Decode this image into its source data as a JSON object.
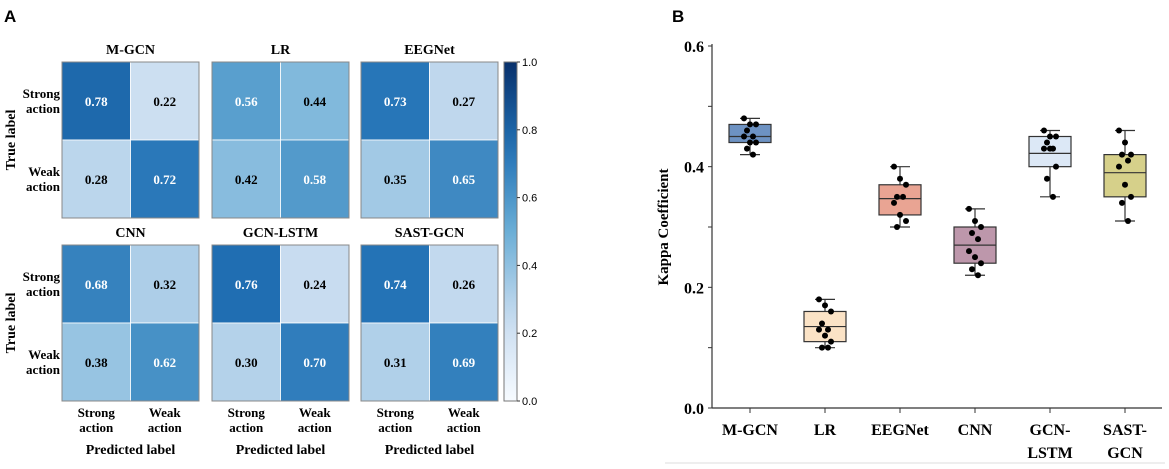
{
  "chart_data": [
    {
      "type": "heatmap",
      "panel_label": "A",
      "ylabel": "True label",
      "xlabel": "Predicted label",
      "row_labels": [
        [
          "Strong",
          "action"
        ],
        [
          "Weak",
          "action"
        ]
      ],
      "col_labels": [
        [
          "Strong",
          "action"
        ],
        [
          "Weak",
          "action"
        ]
      ],
      "colorbar": {
        "min": 0.0,
        "max": 1.0,
        "ticks": [
          "0.0",
          "0.2",
          "0.4",
          "0.6",
          "0.8",
          "1.0"
        ],
        "colormap": "Blues"
      },
      "matrices": [
        {
          "title": "M-GCN",
          "values": [
            [
              0.78,
              0.22
            ],
            [
              0.28,
              0.72
            ]
          ]
        },
        {
          "title": "LR",
          "values": [
            [
              0.56,
              0.44
            ],
            [
              0.42,
              0.58
            ]
          ]
        },
        {
          "title": "EEGNet",
          "values": [
            [
              0.73,
              0.27
            ],
            [
              0.35,
              0.65
            ]
          ]
        },
        {
          "title": "CNN",
          "values": [
            [
              0.68,
              0.32
            ],
            [
              0.38,
              0.62
            ]
          ]
        },
        {
          "title": "GCN-LSTM",
          "values": [
            [
              0.76,
              0.24
            ],
            [
              0.3,
              0.7
            ]
          ]
        },
        {
          "title": "SAST-GCN",
          "values": [
            [
              0.74,
              0.26
            ],
            [
              0.31,
              0.69
            ]
          ]
        }
      ]
    },
    {
      "type": "box",
      "panel_label": "B",
      "ylabel": "Kappa Coefficient",
      "xlabel": "",
      "ylim": [
        0.0,
        0.6
      ],
      "yticks": [
        "0.0",
        "0.2",
        "0.4",
        "0.6"
      ],
      "categories": [
        [
          "M-GCN"
        ],
        [
          "LR"
        ],
        [
          "EEGNet"
        ],
        [
          "CNN"
        ],
        [
          "GCN-",
          "LSTM"
        ],
        [
          "SAST-",
          "GCN"
        ]
      ],
      "boxes": [
        {
          "name": "M-GCN",
          "min": 0.42,
          "q1": 0.44,
          "median": 0.45,
          "q3": 0.47,
          "max": 0.48,
          "color": "#6d92c2",
          "points": [
            0.48,
            0.47,
            0.47,
            0.46,
            0.45,
            0.45,
            0.44,
            0.44,
            0.43,
            0.42
          ]
        },
        {
          "name": "LR",
          "min": 0.1,
          "q1": 0.11,
          "median": 0.135,
          "q3": 0.16,
          "max": 0.18,
          "color": "#fbe3c6",
          "points": [
            0.18,
            0.17,
            0.16,
            0.14,
            0.13,
            0.13,
            0.12,
            0.11,
            0.1,
            0.1
          ]
        },
        {
          "name": "EEGNet",
          "min": 0.3,
          "q1": 0.32,
          "median": 0.347,
          "q3": 0.37,
          "max": 0.4,
          "color": "#e9a493",
          "points": [
            0.4,
            0.38,
            0.37,
            0.35,
            0.35,
            0.34,
            0.32,
            0.31,
            0.3
          ]
        },
        {
          "name": "CNN",
          "min": 0.22,
          "q1": 0.24,
          "median": 0.27,
          "q3": 0.3,
          "max": 0.33,
          "color": "#bd97ab",
          "points": [
            0.33,
            0.31,
            0.3,
            0.29,
            0.28,
            0.26,
            0.25,
            0.24,
            0.23,
            0.22
          ]
        },
        {
          "name": "GCN-LSTM",
          "min": 0.35,
          "q1": 0.4,
          "median": 0.422,
          "q3": 0.45,
          "max": 0.46,
          "color": "#dce8f6",
          "points": [
            0.46,
            0.45,
            0.45,
            0.44,
            0.43,
            0.43,
            0.43,
            0.4,
            0.38,
            0.35
          ]
        },
        {
          "name": "SAST-GCN",
          "min": 0.31,
          "q1": 0.35,
          "median": 0.39,
          "q3": 0.42,
          "max": 0.46,
          "color": "#d6d08a",
          "points": [
            0.46,
            0.44,
            0.42,
            0.42,
            0.41,
            0.4,
            0.37,
            0.35,
            0.34,
            0.31
          ]
        }
      ]
    }
  ]
}
